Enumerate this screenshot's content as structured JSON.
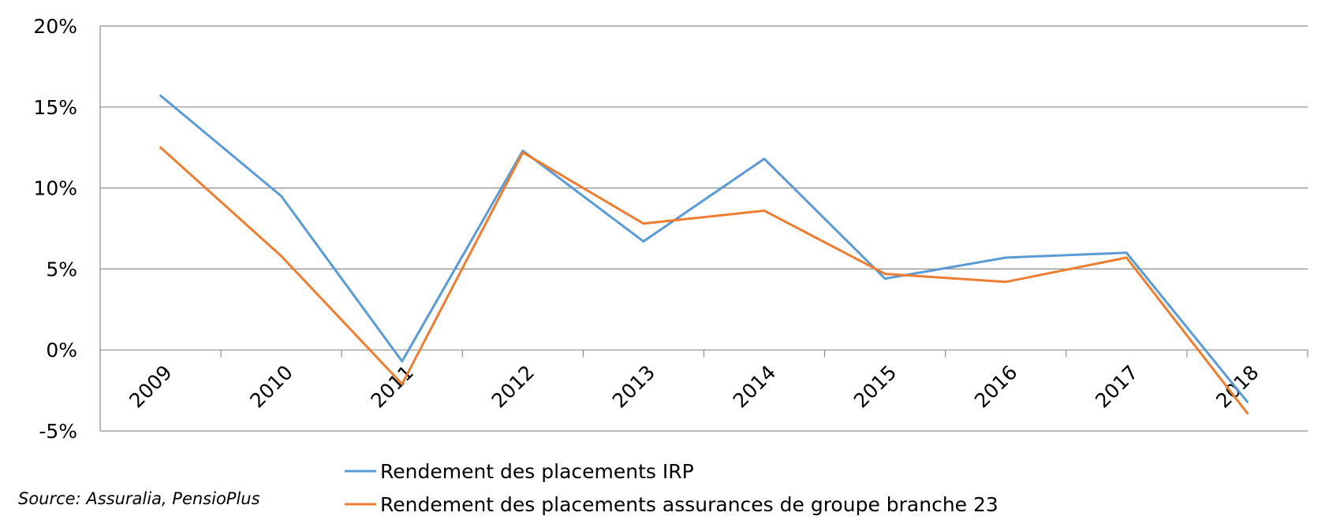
{
  "chart_data": {
    "type": "line",
    "x": [
      "2009",
      "2010",
      "2011",
      "2012",
      "2013",
      "2014",
      "2015",
      "2016",
      "2017",
      "2018"
    ],
    "series": [
      {
        "name": "Rendement des placements IRP",
        "color": "#5b9bd5",
        "values": [
          15.7,
          9.5,
          -0.7,
          12.3,
          6.7,
          11.8,
          4.4,
          5.7,
          6.0,
          -3.2
        ]
      },
      {
        "name": "Rendement des placements assurances de groupe branche 23",
        "color": "#ed7d31",
        "values": [
          12.5,
          5.8,
          -2.1,
          12.2,
          7.8,
          8.6,
          4.7,
          4.2,
          5.7,
          -3.9
        ]
      }
    ],
    "ylim": [
      -5,
      20
    ],
    "yticks": [
      -5,
      0,
      5,
      10,
      15,
      20
    ],
    "ytick_labels": [
      "-5%",
      "0%",
      "5%",
      "10%",
      "15%",
      "20%"
    ],
    "grid": true,
    "legend_position": "bottom",
    "title": "",
    "xlabel": "",
    "ylabel": "",
    "source": "Source: Assuralia, PensioPlus"
  }
}
